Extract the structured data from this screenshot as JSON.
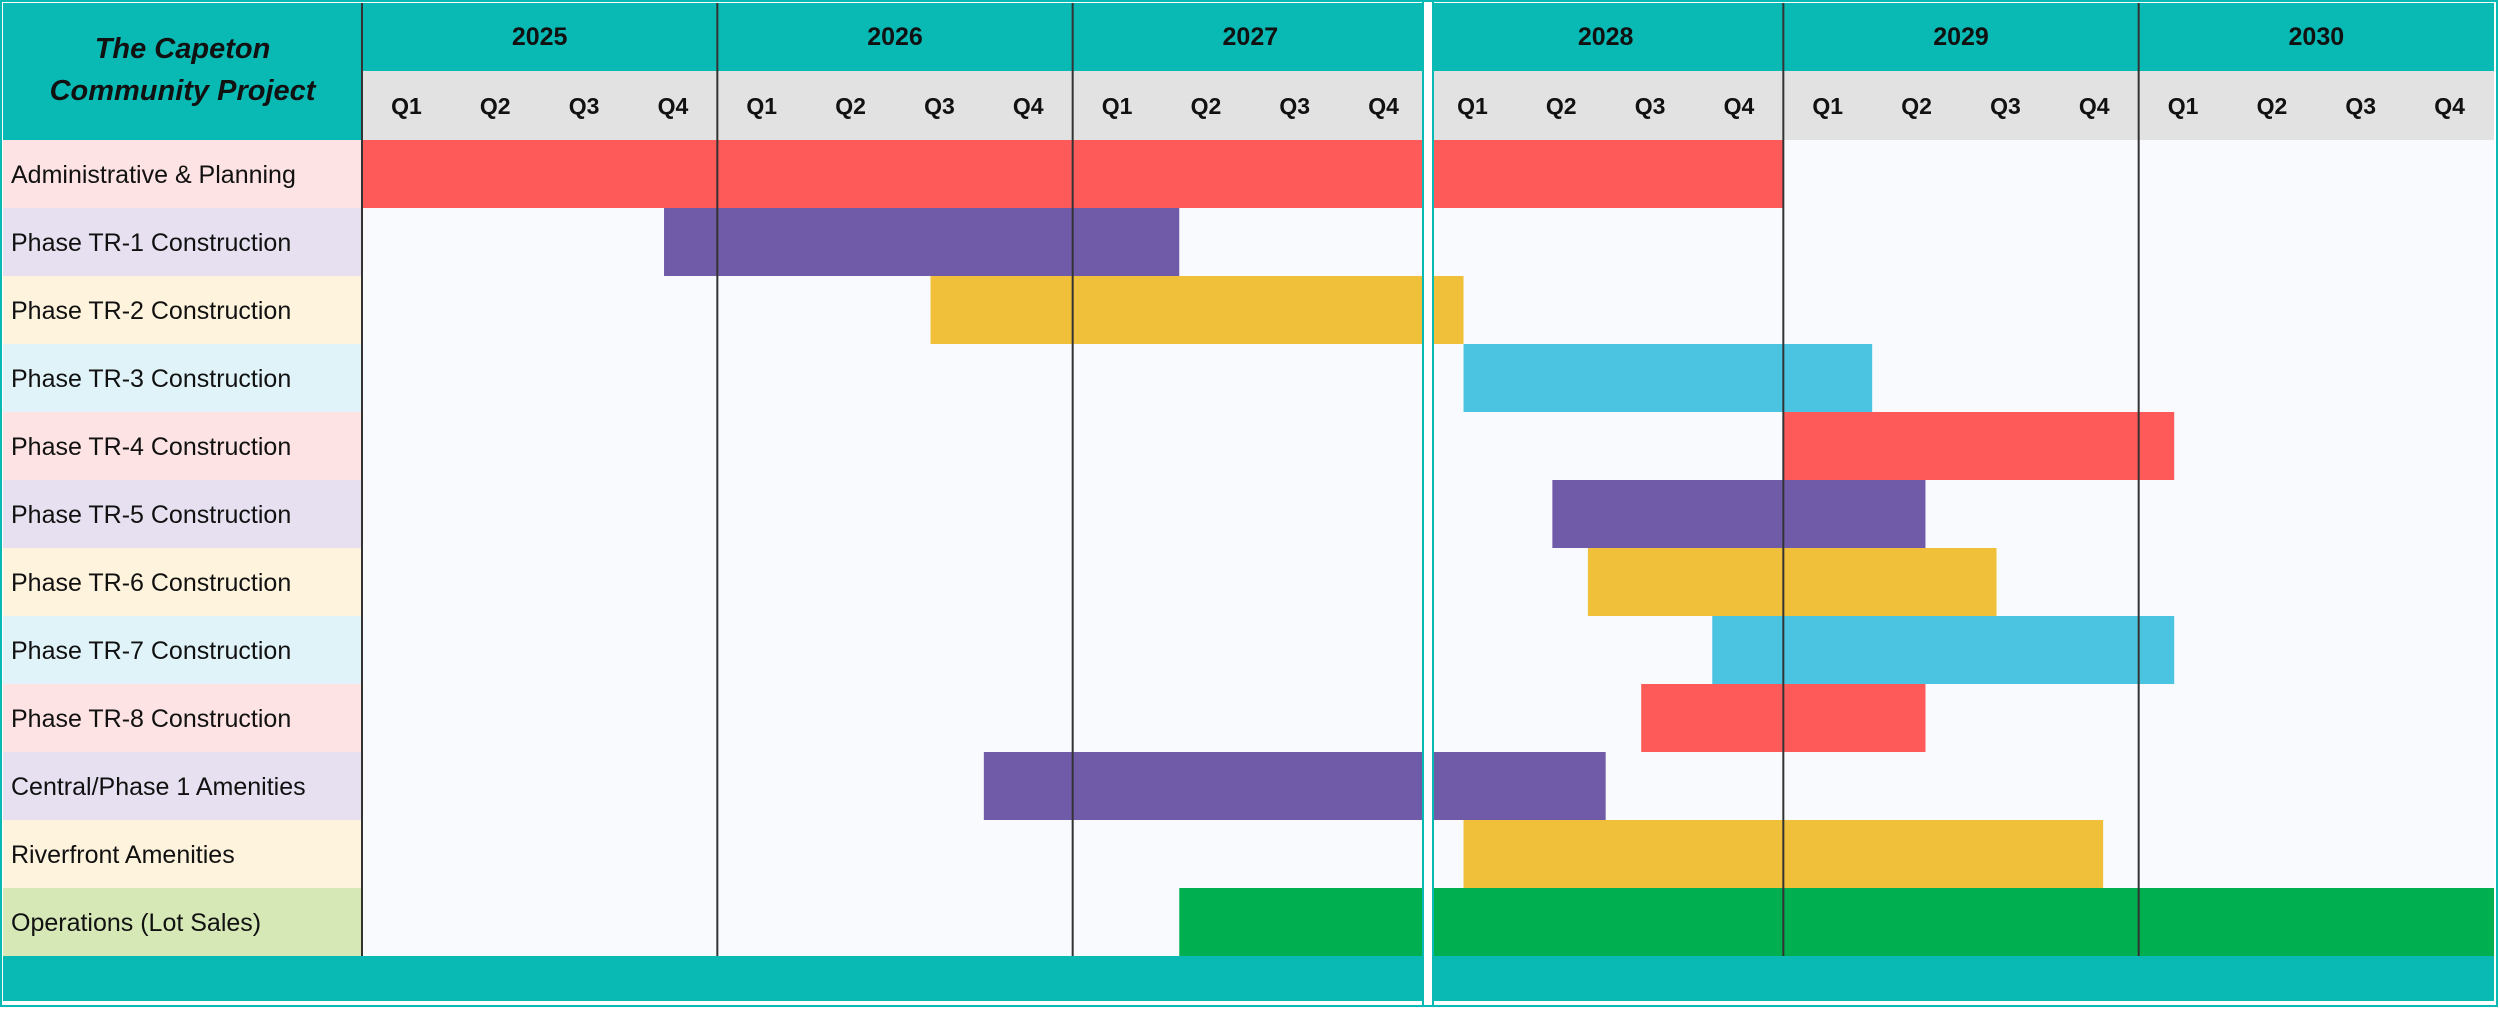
{
  "chart_data": {
    "type": "gantt",
    "title": "The Capeton Community Project",
    "title_lines": [
      "The Capeton",
      "Community Project"
    ],
    "years": [
      "2025",
      "2026",
      "2027",
      "2028",
      "2029",
      "2030"
    ],
    "quarters": [
      "Q1",
      "Q2",
      "Q3",
      "Q4"
    ],
    "time_range": [
      2025.0,
      2031.0
    ],
    "tasks": [
      {
        "name": "Administrative & Planning",
        "start": 2025.0,
        "end": 2029.0,
        "color": "#ff5a5a",
        "label_bg": "#fde3e3"
      },
      {
        "name": "Phase TR-1 Construction",
        "start": 2025.85,
        "end": 2027.3,
        "color": "#6f5ba8",
        "label_bg": "#e6e0f0"
      },
      {
        "name": "Phase TR-2 Construction",
        "start": 2026.6,
        "end": 2028.1,
        "color": "#f1c03a",
        "label_bg": "#fef3dc"
      },
      {
        "name": "Phase TR-3 Construction",
        "start": 2028.1,
        "end": 2029.25,
        "color": "#4bc4e2",
        "label_bg": "#dff3f9"
      },
      {
        "name": "Phase TR-4 Construction",
        "start": 2029.0,
        "end": 2030.1,
        "color": "#ff5a5a",
        "label_bg": "#fde3e3"
      },
      {
        "name": "Phase TR-5 Construction",
        "start": 2028.35,
        "end": 2029.4,
        "color": "#6f5ba8",
        "label_bg": "#e6e0f0"
      },
      {
        "name": "Phase TR-6 Construction",
        "start": 2028.45,
        "end": 2029.6,
        "color": "#f1c03a",
        "label_bg": "#fef3dc"
      },
      {
        "name": "Phase TR-7 Construction",
        "start": 2028.8,
        "end": 2030.1,
        "color": "#4bc4e2",
        "label_bg": "#dff3f9"
      },
      {
        "name": "Phase TR-8 Construction",
        "start": 2028.6,
        "end": 2029.4,
        "color": "#ff5a5a",
        "label_bg": "#fde3e3"
      },
      {
        "name": "Central/Phase 1 Amenities",
        "start": 2026.75,
        "end": 2028.5,
        "color": "#6f5ba8",
        "label_bg": "#e6e0f0"
      },
      {
        "name": "Riverfront Amenities",
        "start": 2028.1,
        "end": 2029.9,
        "color": "#f1c03a",
        "label_bg": "#fef3dc"
      },
      {
        "name": "Operations (Lot Sales)",
        "start": 2027.3,
        "end": 2031.0,
        "color": "#00b050",
        "label_bg": "#d5e8b5"
      }
    ],
    "colors": {
      "header_teal": "#08b9b4",
      "quarter_bg": "#e2e2e2",
      "grid_bg": "#f8fafe",
      "year_divider": "#333333"
    }
  }
}
